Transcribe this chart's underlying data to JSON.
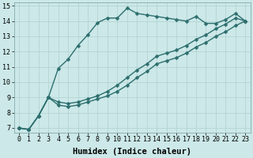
{
  "xlabel": "Humidex (Indice chaleur)",
  "ylabel": "",
  "bg_color": "#cce8e8",
  "line_color": "#2d6e6e",
  "grid_color": "#b0d0d0",
  "xlim": [
    -0.5,
    23.5
  ],
  "ylim": [
    6.7,
    15.2
  ],
  "xticks": [
    0,
    1,
    2,
    3,
    4,
    5,
    6,
    7,
    8,
    9,
    10,
    11,
    12,
    13,
    14,
    15,
    16,
    17,
    18,
    19,
    20,
    21,
    22,
    23
  ],
  "yticks": [
    7,
    8,
    9,
    10,
    11,
    12,
    13,
    14,
    15
  ],
  "line1_x": [
    0,
    1,
    2,
    3,
    4,
    5,
    6,
    7,
    8,
    9,
    10,
    11,
    12,
    13,
    14,
    15,
    16,
    17,
    18,
    19,
    20,
    21,
    22,
    23
  ],
  "line1_y": [
    7.0,
    6.9,
    7.8,
    9.0,
    10.9,
    11.5,
    12.4,
    13.1,
    13.9,
    14.2,
    14.2,
    14.85,
    14.5,
    14.4,
    14.3,
    14.2,
    14.1,
    14.0,
    14.3,
    13.85,
    13.85,
    14.1,
    14.5,
    14.0
  ],
  "line2_x": [
    0,
    1,
    2,
    3,
    4,
    5,
    6,
    7,
    8,
    9,
    10,
    11,
    12,
    13,
    14,
    15,
    16,
    17,
    18,
    19,
    20,
    21,
    22,
    23
  ],
  "line2_y": [
    7.0,
    6.9,
    7.8,
    9.0,
    8.7,
    8.6,
    8.7,
    8.9,
    9.1,
    9.4,
    9.8,
    10.3,
    10.8,
    11.2,
    11.7,
    11.9,
    12.1,
    12.4,
    12.8,
    13.1,
    13.5,
    13.8,
    14.2,
    14.0
  ],
  "line3_x": [
    0,
    1,
    2,
    3,
    4,
    5,
    6,
    7,
    8,
    9,
    10,
    11,
    12,
    13,
    14,
    15,
    16,
    17,
    18,
    19,
    20,
    21,
    22,
    23
  ],
  "line3_y": [
    7.0,
    6.9,
    7.8,
    9.0,
    8.5,
    8.4,
    8.5,
    8.7,
    8.9,
    9.1,
    9.4,
    9.8,
    10.3,
    10.7,
    11.2,
    11.4,
    11.6,
    11.9,
    12.3,
    12.6,
    13.0,
    13.3,
    13.7,
    14.0
  ],
  "marker": "D",
  "markersize": 2.5,
  "linewidth": 1.0,
  "tick_fontsize": 6.0,
  "xlabel_fontsize": 7.5,
  "xlabel_fontweight": "bold"
}
